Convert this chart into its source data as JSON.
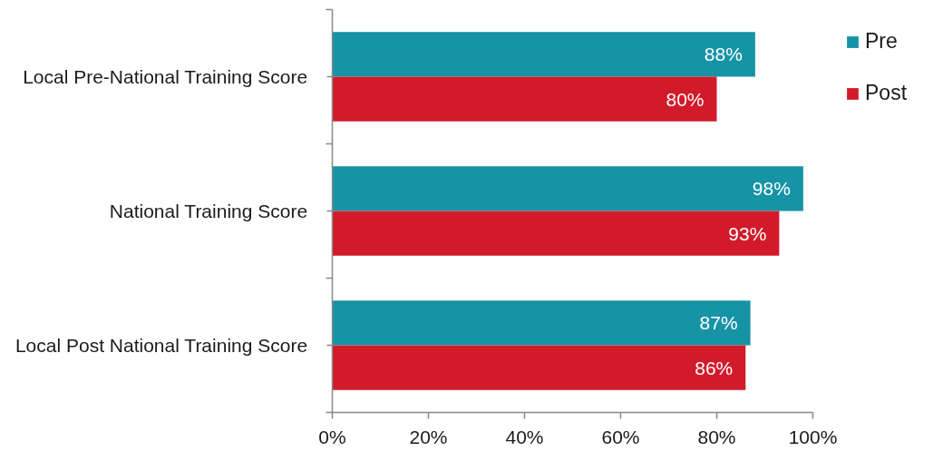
{
  "chart_data": {
    "type": "bar",
    "orientation": "horizontal",
    "categories": [
      "Local Pre-National Training Score",
      "National Training Score",
      "Local Post National Training Score"
    ],
    "series": [
      {
        "name": "Pre",
        "color": "#1793a6",
        "values": [
          88,
          98,
          87
        ],
        "value_labels": [
          "88%",
          "98%",
          "87%"
        ]
      },
      {
        "name": "Post",
        "color": "#d21b2a",
        "values": [
          80,
          93,
          86
        ],
        "value_labels": [
          "80%",
          "93%",
          "86%"
        ]
      }
    ],
    "xlim": [
      0,
      100
    ],
    "xticks": [
      {
        "value": 0,
        "label": "0%"
      },
      {
        "value": 20,
        "label": "20%"
      },
      {
        "value": 40,
        "label": "40%"
      },
      {
        "value": 60,
        "label": "60%"
      },
      {
        "value": 80,
        "label": "80%"
      },
      {
        "value": 100,
        "label": "100%"
      }
    ],
    "grid": false,
    "legend": "top right"
  }
}
